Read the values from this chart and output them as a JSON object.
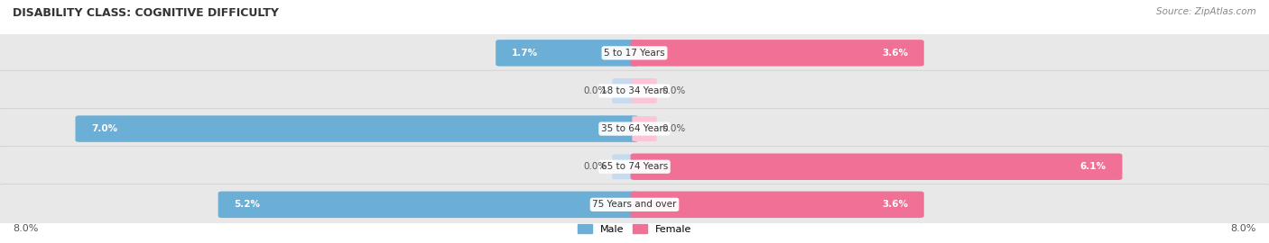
{
  "title": "DISABILITY CLASS: COGNITIVE DIFFICULTY",
  "source": "Source: ZipAtlas.com",
  "categories": [
    "5 to 17 Years",
    "18 to 34 Years",
    "35 to 64 Years",
    "65 to 74 Years",
    "75 Years and over"
  ],
  "male_values": [
    1.7,
    0.0,
    7.0,
    0.0,
    5.2
  ],
  "female_values": [
    3.6,
    0.0,
    0.0,
    6.1,
    3.6
  ],
  "max_val": 8.0,
  "male_color": "#6baed6",
  "female_color": "#f07096",
  "male_light": "#c6dbef",
  "female_light": "#fcc5d5",
  "row_bg": "#e8e8e8",
  "title_color": "#333333",
  "source_color": "#888888",
  "val_label_color_dark": "#555555",
  "x_label": "8.0%",
  "legend_male": "Male",
  "legend_female": "Female"
}
